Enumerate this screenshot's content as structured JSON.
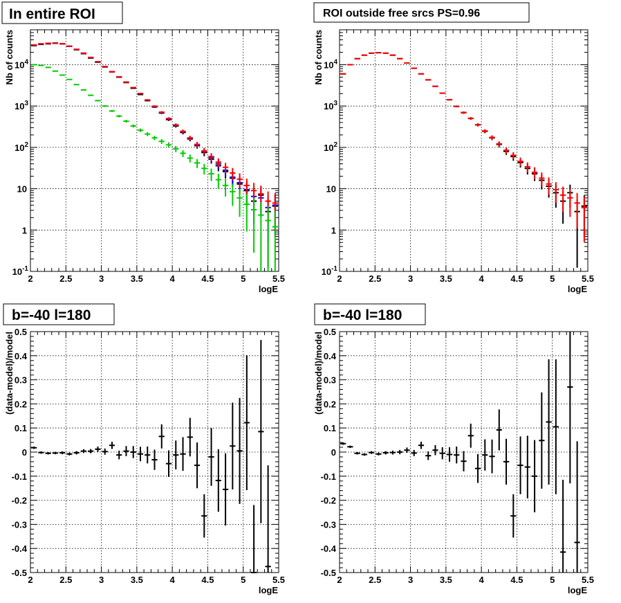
{
  "colors": {
    "data": "#000000",
    "model": "#ff0000",
    "model_blue": "#0000ff",
    "component": "#00cc00",
    "grid": "#000000"
  },
  "chart_data": [
    {
      "type": "scatter",
      "title": "In entire ROI",
      "xlabel": "logE",
      "ylabel": "Nb of counts",
      "xlim": [
        2,
        5.5
      ],
      "ylim": [
        0.1,
        70000
      ],
      "ylog": true,
      "grid": true,
      "x_ticks": [
        "2",
        "2.5",
        "3",
        "3.5",
        "4",
        "4.5",
        "5",
        "5.5"
      ],
      "y_ticks": [
        {
          "base": "10",
          "exp": "-1"
        },
        {
          "base": "1",
          "exp": ""
        },
        {
          "base": "10",
          "exp": ""
        },
        {
          "base": "10",
          "exp": "2"
        },
        {
          "base": "10",
          "exp": "3"
        },
        {
          "base": "10",
          "exp": "4"
        }
      ],
      "x": [
        2.05,
        2.15,
        2.25,
        2.35,
        2.45,
        2.55,
        2.65,
        2.75,
        2.85,
        2.95,
        3.05,
        3.15,
        3.25,
        3.35,
        3.45,
        3.55,
        3.65,
        3.75,
        3.85,
        3.95,
        4.05,
        4.15,
        4.25,
        4.35,
        4.45,
        4.55,
        4.65,
        4.75,
        4.85,
        4.95,
        5.05,
        5.15,
        5.25,
        5.35,
        5.45
      ],
      "series": [
        {
          "color": "#000000",
          "values": [
            29000,
            31000,
            32000,
            33000,
            32000,
            28000,
            23000,
            18500,
            14500,
            11500,
            8800,
            6700,
            5000,
            3700,
            2700,
            1900,
            1350,
            950,
            680,
            470,
            330,
            230,
            160,
            110,
            75,
            52,
            36,
            26,
            18,
            13,
            9,
            5,
            7,
            2.8,
            3.8
          ]
        },
        {
          "color": "#0000ff",
          "values": [
            30000,
            32000,
            33000,
            33500,
            32000,
            28000,
            23500,
            19000,
            15000,
            11800,
            9000,
            6800,
            5100,
            3800,
            2800,
            2000,
            1400,
            980,
            700,
            490,
            345,
            240,
            165,
            115,
            80,
            57,
            40,
            28,
            19,
            14,
            9.5,
            6.5,
            6,
            3.5,
            4
          ]
        },
        {
          "color": "#ff0000",
          "values": [
            30000,
            32000,
            33000,
            33500,
            32000,
            28000,
            23500,
            19000,
            15000,
            11800,
            9000,
            6800,
            5100,
            3800,
            2800,
            2000,
            1400,
            990,
            710,
            500,
            350,
            245,
            170,
            118,
            82,
            60,
            44,
            33,
            24,
            17,
            12,
            9,
            7.5,
            5,
            4.5
          ]
        },
        {
          "color": "#00cc00",
          "values": [
            10000,
            9600,
            8600,
            7000,
            5600,
            4400,
            3300,
            2450,
            1820,
            1350,
            1000,
            760,
            570,
            430,
            330,
            260,
            210,
            170,
            140,
            115,
            92,
            72,
            55,
            42,
            31,
            23,
            16.5,
            12,
            8.5,
            6,
            4.2,
            3.1,
            2.3,
            1.7,
            1.2
          ]
        }
      ]
    },
    {
      "type": "scatter",
      "title": "ROI outside free srcs PS=0.96",
      "xlabel": "logE",
      "ylabel": "Nb of counts",
      "xlim": [
        2,
        5.5
      ],
      "ylim": [
        0.1,
        70000
      ],
      "ylog": true,
      "grid": true,
      "x_ticks": [
        "2",
        "2.5",
        "3",
        "3.5",
        "4",
        "4.5",
        "5",
        "5.5"
      ],
      "y_ticks": [
        {
          "base": "10",
          "exp": "-1"
        },
        {
          "base": "1",
          "exp": ""
        },
        {
          "base": "10",
          "exp": ""
        },
        {
          "base": "10",
          "exp": "2"
        },
        {
          "base": "10",
          "exp": "3"
        },
        {
          "base": "10",
          "exp": "4"
        }
      ],
      "x": [
        2.05,
        2.15,
        2.25,
        2.35,
        2.45,
        2.55,
        2.65,
        2.75,
        2.85,
        2.95,
        3.05,
        3.15,
        3.25,
        3.35,
        3.45,
        3.55,
        3.65,
        3.75,
        3.85,
        3.95,
        4.05,
        4.15,
        4.25,
        4.35,
        4.45,
        4.55,
        4.65,
        4.75,
        4.85,
        4.95,
        5.05,
        5.15,
        5.25,
        5.35,
        5.45
      ],
      "series": [
        {
          "color": "#000000",
          "values": [
            6000,
            10000,
            14000,
            17000,
            19000,
            19500,
            19000,
            17000,
            14000,
            11000,
            8200,
            6000,
            4300,
            3000,
            2050,
            1420,
            980,
            690,
            500,
            350,
            245,
            170,
            118,
            80,
            60,
            43,
            31,
            23,
            16,
            11.5,
            8,
            5,
            8,
            2.8,
            3.8
          ]
        },
        {
          "color": "#ff0000",
          "values": [
            6000,
            10000,
            14000,
            17000,
            19000,
            19500,
            19000,
            17000,
            14000,
            11000,
            8200,
            6000,
            4300,
            3000,
            2050,
            1420,
            980,
            700,
            505,
            355,
            250,
            175,
            122,
            85,
            64,
            46,
            34,
            25,
            18,
            13,
            9.5,
            7,
            6,
            4.5,
            3.5
          ]
        }
      ]
    },
    {
      "type": "scatter",
      "title": "b=-40 l=180",
      "xlabel": "logE",
      "ylabel": "(data-model)/model",
      "xlim": [
        2,
        5.5
      ],
      "ylim": [
        -0.5,
        0.5
      ],
      "grid": true,
      "x_ticks": [
        "2",
        "2.5",
        "3",
        "3.5",
        "4",
        "4.5",
        "5",
        "5.5"
      ],
      "y_ticks": [
        "-0.5",
        "-0.4",
        "-0.3",
        "-0.2",
        "-0.1",
        "0",
        "0.1",
        "0.2",
        "0.3",
        "0.4",
        "0.5"
      ],
      "x": [
        2.05,
        2.15,
        2.25,
        2.35,
        2.45,
        2.55,
        2.65,
        2.75,
        2.85,
        2.95,
        3.05,
        3.15,
        3.25,
        3.35,
        3.45,
        3.55,
        3.65,
        3.75,
        3.85,
        3.95,
        4.05,
        4.15,
        4.25,
        4.35,
        4.45,
        4.55,
        4.65,
        4.75,
        4.85,
        4.95,
        5.05,
        5.15,
        5.25,
        5.35,
        5.45
      ],
      "values": [
        0.018,
        -0.002,
        -0.005,
        -0.004,
        -0.003,
        -0.008,
        -0.003,
        0.004,
        0.004,
        0.012,
        0.002,
        0.028,
        -0.012,
        0.004,
        0,
        -0.008,
        -0.012,
        -0.032,
        0.065,
        -0.048,
        -0.012,
        -0.008,
        0.062,
        -0.055,
        -0.265,
        -0.02,
        -0.118,
        -0.155,
        0.025,
        0.005,
        0.122,
        -0.5,
        0.085,
        -0.475,
        0
      ],
      "errors": [
        0.005,
        0.005,
        0.005,
        0.005,
        0.006,
        0.006,
        0.007,
        0.008,
        0.009,
        0.011,
        0.013,
        0.015,
        0.018,
        0.021,
        0.025,
        0.03,
        0.035,
        0.042,
        0.05,
        0.055,
        0.06,
        0.07,
        0.08,
        0.095,
        0.09,
        0.12,
        0.13,
        0.15,
        0.18,
        0.22,
        0.28,
        0.28,
        0.38,
        0.42,
        0
      ]
    },
    {
      "type": "scatter",
      "title": "b=-40 l=180",
      "xlabel": "logE",
      "ylabel": "(data-model)/model",
      "xlim": [
        2,
        5.5
      ],
      "ylim": [
        -0.5,
        0.5
      ],
      "grid": true,
      "x_ticks": [
        "2",
        "2.5",
        "3",
        "3.5",
        "4",
        "4.5",
        "5",
        "5.5"
      ],
      "y_ticks": [
        "-0.5",
        "-0.4",
        "-0.3",
        "-0.2",
        "-0.1",
        "0",
        "0.1",
        "0.2",
        "0.3",
        "0.4",
        "0.5"
      ],
      "x": [
        2.05,
        2.15,
        2.25,
        2.35,
        2.45,
        2.55,
        2.65,
        2.75,
        2.85,
        2.95,
        3.05,
        3.15,
        3.25,
        3.35,
        3.45,
        3.55,
        3.65,
        3.75,
        3.85,
        3.95,
        4.05,
        4.15,
        4.25,
        4.35,
        4.45,
        4.55,
        4.65,
        4.75,
        4.85,
        4.95,
        5.05,
        5.15,
        5.25,
        5.35,
        5.45
      ],
      "values": [
        0.035,
        0.022,
        -0.005,
        -0.01,
        -0.002,
        -0.008,
        -0.003,
        -0.002,
        0,
        0.008,
        -0.004,
        0.028,
        -0.015,
        0.008,
        -0.005,
        -0.01,
        -0.012,
        -0.038,
        0.068,
        -0.068,
        -0.012,
        -0.018,
        0.092,
        -0.04,
        -0.265,
        -0.055,
        -0.062,
        -0.1,
        0.048,
        0.125,
        0.105,
        -0.415,
        0.27,
        -0.375,
        0
      ],
      "errors": [
        0.005,
        0.005,
        0.005,
        0.005,
        0.006,
        0.006,
        0.007,
        0.008,
        0.009,
        0.011,
        0.013,
        0.015,
        0.018,
        0.021,
        0.025,
        0.03,
        0.035,
        0.042,
        0.05,
        0.06,
        0.065,
        0.07,
        0.085,
        0.095,
        0.09,
        0.12,
        0.13,
        0.15,
        0.2,
        0.26,
        0.28,
        0.3,
        0.4,
        0.42,
        0
      ]
    }
  ]
}
